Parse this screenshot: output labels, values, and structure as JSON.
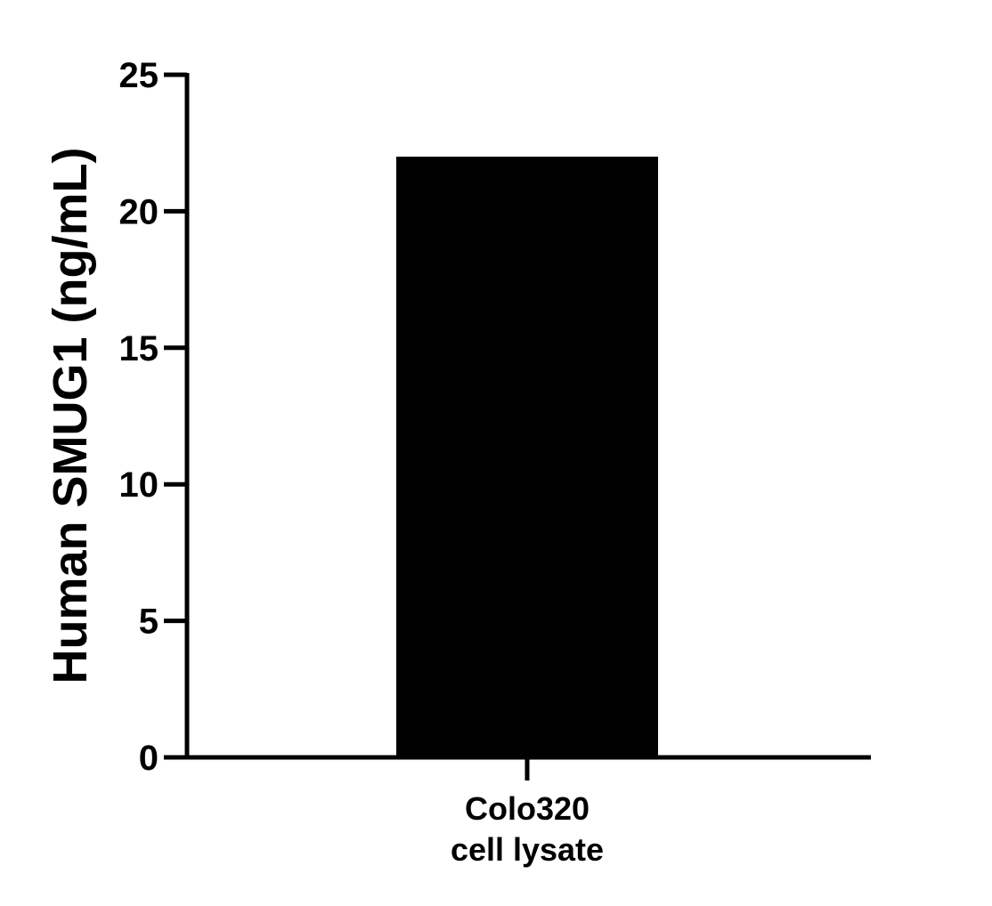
{
  "chart_data": {
    "type": "bar",
    "title": "",
    "xlabel": "",
    "ylabel": "Human SMUG1 (ng/mL)",
    "categories": [
      [
        "Colo320",
        "cell lysate"
      ]
    ],
    "values": [
      22
    ],
    "ylim": [
      0,
      25
    ],
    "yticks": [
      0,
      5,
      10,
      15,
      20,
      25
    ],
    "grid": false,
    "legend": "none",
    "bar_color": "#000000",
    "axis_color": "#000000"
  }
}
